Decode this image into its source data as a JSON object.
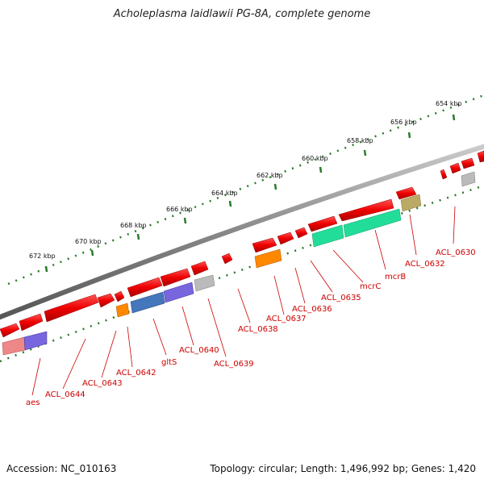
{
  "title": "Acholeplasma laidlawii PG-8A, complete genome",
  "footer": {
    "accession": "Accession: NC_010163",
    "summary": "Topology: circular; Length: 1,496,992 bp; Genes: 1,420"
  },
  "scale_labels": [
    "654 kbp",
    "656 kbp",
    "658 kbp",
    "660 kbp",
    "662 kbp",
    "664 kbp",
    "666 kbp",
    "668 kbp",
    "670 kbp",
    "672 kbp"
  ],
  "gene_labels": [
    "ACL_0630",
    "ACL_0632",
    "mcrB",
    "mcrC",
    "ACL_0635",
    "ACL_0636",
    "ACL_0637",
    "ACL_0638",
    "ACL_0639",
    "ACL_0640",
    "gltS",
    "ACL_0642",
    "ACL_0643",
    "ACL_0644",
    "aes"
  ],
  "colors": {
    "cds": "#ee0000",
    "backbone": "#888888",
    "tick": "#2a7a2a",
    "label": "#cc0000",
    "green_feature": "#22dd99",
    "orange_feature": "#ff8800",
    "purple_feature": "#7766dd",
    "blue_feature": "#4477bb",
    "grey_feature": "#bbbbbb",
    "olive_feature": "#bbaa66",
    "pink_feature": "#ee8888"
  }
}
